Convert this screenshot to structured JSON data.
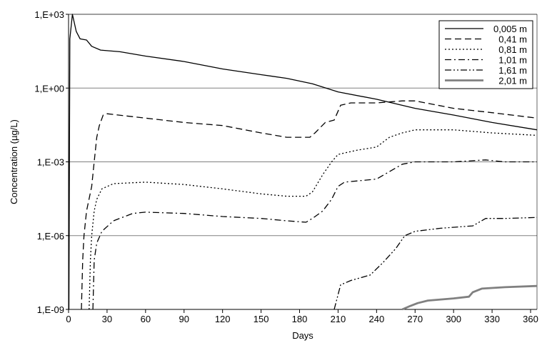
{
  "chart_data": {
    "type": "line",
    "y_scale": "log",
    "xlabel": "Days",
    "ylabel": "Concentration (µg/L)",
    "xlim": [
      0,
      365
    ],
    "ylim": [
      1e-09,
      1000
    ],
    "x_ticks": [
      0,
      30,
      60,
      90,
      120,
      150,
      180,
      210,
      240,
      270,
      300,
      330,
      360
    ],
    "y_ticks": [
      {
        "value": 1000,
        "label": "1,E+03"
      },
      {
        "value": 1,
        "label": "1,E+00"
      },
      {
        "value": 0.001,
        "label": "1,E-03"
      },
      {
        "value": 1e-06,
        "label": "1,E-06"
      },
      {
        "value": 1e-09,
        "label": "1,E-09"
      }
    ],
    "grid": "horizontal major gridlines",
    "legend_position": "top-right",
    "series": [
      {
        "name": "0,005 m",
        "style": "solid",
        "color": "#000000",
        "points": [
          [
            0.3,
            1e-09
          ],
          [
            1,
            100
          ],
          [
            3,
            1000
          ],
          [
            6,
            200
          ],
          [
            9,
            100
          ],
          [
            14,
            90
          ],
          [
            18,
            50
          ],
          [
            25,
            35
          ],
          [
            40,
            30
          ],
          [
            60,
            20
          ],
          [
            90,
            12
          ],
          [
            120,
            6
          ],
          [
            150,
            3.5
          ],
          [
            170,
            2.5
          ],
          [
            190,
            1.5
          ],
          [
            210,
            0.7
          ],
          [
            240,
            0.35
          ],
          [
            270,
            0.15
          ],
          [
            300,
            0.08
          ],
          [
            330,
            0.04
          ],
          [
            365,
            0.02
          ]
        ]
      },
      {
        "name": "0,41 m",
        "style": "dashed",
        "color": "#000000",
        "points": [
          [
            10,
            1e-09
          ],
          [
            11,
            1e-07
          ],
          [
            12,
            1e-06
          ],
          [
            14,
            1e-05
          ],
          [
            18,
            0.0001
          ],
          [
            20,
            0.001
          ],
          [
            22,
            0.01
          ],
          [
            24,
            0.03
          ],
          [
            27,
            0.08
          ],
          [
            30,
            0.09
          ],
          [
            60,
            0.06
          ],
          [
            90,
            0.04
          ],
          [
            120,
            0.03
          ],
          [
            150,
            0.015
          ],
          [
            170,
            0.01
          ],
          [
            188,
            0.01
          ],
          [
            192,
            0.015
          ],
          [
            200,
            0.04
          ],
          [
            207,
            0.05
          ],
          [
            212,
            0.2
          ],
          [
            220,
            0.25
          ],
          [
            240,
            0.25
          ],
          [
            260,
            0.3
          ],
          [
            270,
            0.3
          ],
          [
            300,
            0.15
          ],
          [
            330,
            0.1
          ],
          [
            365,
            0.06
          ]
        ]
      },
      {
        "name": "0,81 m",
        "style": "dotted",
        "color": "#000000",
        "points": [
          [
            16,
            1e-09
          ],
          [
            17,
            1e-07
          ],
          [
            18,
            1e-06
          ],
          [
            20,
            1e-05
          ],
          [
            22,
            3e-05
          ],
          [
            26,
            8e-05
          ],
          [
            35,
            0.00013
          ],
          [
            60,
            0.00015
          ],
          [
            90,
            0.00012
          ],
          [
            120,
            8e-05
          ],
          [
            150,
            5e-05
          ],
          [
            170,
            4e-05
          ],
          [
            185,
            4e-05
          ],
          [
            190,
            6e-05
          ],
          [
            198,
            0.0003
          ],
          [
            205,
            0.001
          ],
          [
            210,
            0.002
          ],
          [
            225,
            0.003
          ],
          [
            240,
            0.004
          ],
          [
            250,
            0.01
          ],
          [
            260,
            0.015
          ],
          [
            270,
            0.02
          ],
          [
            300,
            0.02
          ],
          [
            330,
            0.015
          ],
          [
            365,
            0.012
          ]
        ]
      },
      {
        "name": "1,01 m",
        "style": "dashdot",
        "color": "#000000",
        "points": [
          [
            19,
            1e-09
          ],
          [
            20,
            1e-07
          ],
          [
            22,
            5e-07
          ],
          [
            26,
            1.5e-06
          ],
          [
            35,
            4e-06
          ],
          [
            50,
            8e-06
          ],
          [
            60,
            9e-06
          ],
          [
            90,
            8e-06
          ],
          [
            120,
            6e-06
          ],
          [
            150,
            5e-06
          ],
          [
            170,
            4e-06
          ],
          [
            185,
            3.5e-06
          ],
          [
            190,
            5e-06
          ],
          [
            198,
            1e-05
          ],
          [
            205,
            3e-05
          ],
          [
            210,
            0.0001
          ],
          [
            215,
            0.00015
          ],
          [
            240,
            0.0002
          ],
          [
            250,
            0.0004
          ],
          [
            260,
            0.0008
          ],
          [
            270,
            0.001
          ],
          [
            300,
            0.001
          ],
          [
            325,
            0.0012
          ],
          [
            340,
            0.001
          ],
          [
            365,
            0.001
          ]
        ]
      },
      {
        "name": "1,61 m",
        "style": "dashdotdot",
        "color": "#000000",
        "points": [
          [
            207,
            1e-09
          ],
          [
            212,
            1e-08
          ],
          [
            220,
            1.5e-08
          ],
          [
            235,
            2.5e-08
          ],
          [
            245,
            8e-08
          ],
          [
            255,
            3e-07
          ],
          [
            262,
            1e-06
          ],
          [
            270,
            1.5e-06
          ],
          [
            290,
            2e-06
          ],
          [
            315,
            2.5e-06
          ],
          [
            325,
            5e-06
          ],
          [
            340,
            5e-06
          ],
          [
            365,
            5.5e-06
          ]
        ]
      },
      {
        "name": "2,01 m",
        "style": "solid-gray",
        "color": "#808080",
        "points": [
          [
            260,
            1e-09
          ],
          [
            265,
            1.3e-09
          ],
          [
            272,
            1.8e-09
          ],
          [
            280,
            2.3e-09
          ],
          [
            300,
            2.8e-09
          ],
          [
            312,
            3.3e-09
          ],
          [
            315,
            5e-09
          ],
          [
            322,
            7e-09
          ],
          [
            340,
            8e-09
          ],
          [
            365,
            9e-09
          ]
        ]
      }
    ]
  }
}
